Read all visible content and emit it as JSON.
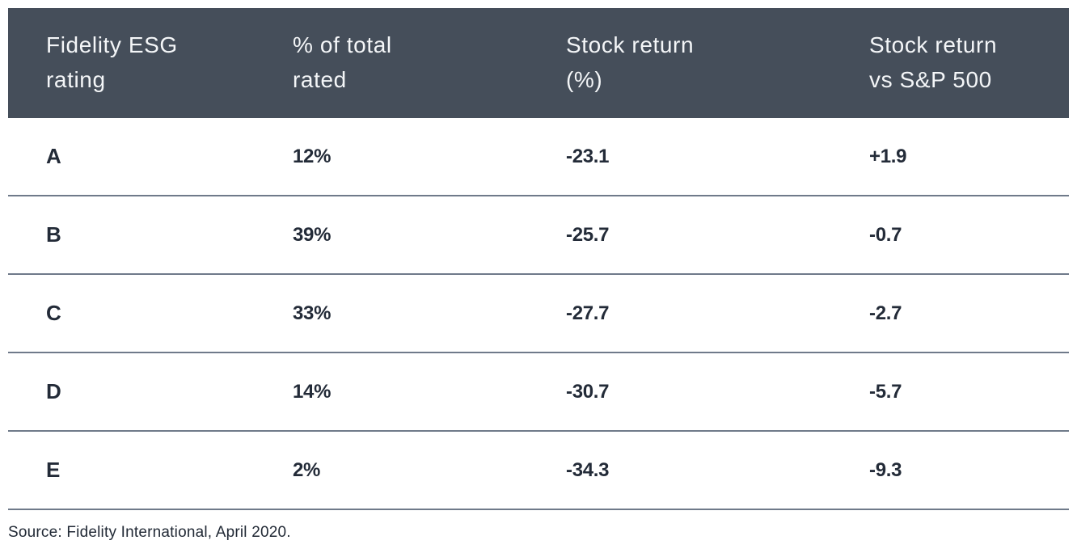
{
  "colors": {
    "header_background": "#454e5a",
    "header_text": "#f4f6f8",
    "body_text": "#232b38",
    "divider": "#6f7a8a",
    "page_background": "#ffffff"
  },
  "table": {
    "headers": [
      {
        "label": "Fidelity ESG\nrating"
      },
      {
        "label": "% of total\nrated"
      },
      {
        "label": "Stock return\n(%)"
      },
      {
        "label": "Stock return\nvs S&P 500"
      }
    ],
    "rows": [
      {
        "rating": "A",
        "pct_of_total_rated": "12%",
        "stock_return_pct": "-23.1",
        "vs_sp500": "+1.9"
      },
      {
        "rating": "B",
        "pct_of_total_rated": "39%",
        "stock_return_pct": "-25.7",
        "vs_sp500": "-0.7"
      },
      {
        "rating": "C",
        "pct_of_total_rated": "33%",
        "stock_return_pct": "-27.7",
        "vs_sp500": "-2.7"
      },
      {
        "rating": "D",
        "pct_of_total_rated": "14%",
        "stock_return_pct": "-30.7",
        "vs_sp500": "-5.7"
      },
      {
        "rating": "E",
        "pct_of_total_rated": "2%",
        "stock_return_pct": "-34.3",
        "vs_sp500": "-9.3"
      }
    ]
  },
  "source": "Source: Fidelity International, April 2020.",
  "chart_data": {
    "type": "table",
    "title": "",
    "columns": [
      "Fidelity ESG rating",
      "% of total rated",
      "Stock return (%)",
      "Stock return vs S&P 500"
    ],
    "rows": [
      [
        "A",
        "12%",
        -23.1,
        1.9
      ],
      [
        "B",
        "39%",
        -25.7,
        -0.7
      ],
      [
        "C",
        "33%",
        -27.7,
        -2.7
      ],
      [
        "D",
        "14%",
        -30.7,
        -5.7
      ],
      [
        "E",
        "2%",
        -34.3,
        -9.3
      ]
    ],
    "notes": "Stock return vs S&P 500 values signed: A is +1.9, others negative",
    "source": "Source: Fidelity International, April 2020."
  }
}
